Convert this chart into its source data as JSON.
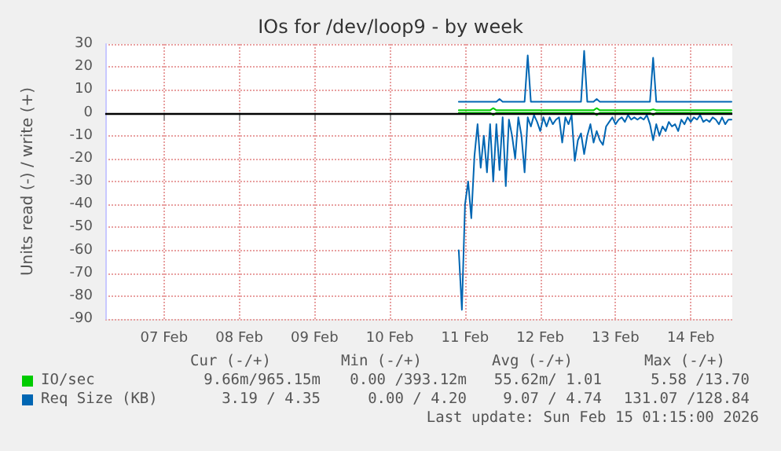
{
  "chart_data": {
    "type": "line",
    "title": "IOs for /dev/loop9 - by week",
    "ylabel": "Units read (-) / write (+)",
    "x": [
      "2026-02-11T10:00",
      "2026-02-11T11:00",
      "2026-02-11T12:00",
      "2026-02-11T13:00",
      "2026-02-11T14:00",
      "2026-02-11T15:00",
      "2026-02-11T16:00",
      "2026-02-11T17:00",
      "2026-02-11T18:00",
      "2026-02-11T19:00",
      "2026-02-11T20:00",
      "2026-02-11T21:00",
      "2026-02-11T22:00",
      "2026-02-11T23:00",
      "2026-02-12T00:00",
      "2026-02-12T01:00",
      "2026-02-12T02:00",
      "2026-02-12T03:00",
      "2026-02-12T04:00",
      "2026-02-12T05:00",
      "2026-02-12T06:00",
      "2026-02-12T07:00",
      "2026-02-12T08:00",
      "2026-02-12T09:00",
      "2026-02-12T10:00",
      "2026-02-12T11:00",
      "2026-02-12T12:00",
      "2026-02-12T13:00",
      "2026-02-12T14:00",
      "2026-02-12T15:00",
      "2026-02-12T16:00",
      "2026-02-12T17:00",
      "2026-02-12T18:00",
      "2026-02-12T19:00",
      "2026-02-12T20:00",
      "2026-02-12T21:00",
      "2026-02-12T22:00",
      "2026-02-12T23:00",
      "2026-02-13T00:00",
      "2026-02-13T01:00",
      "2026-02-13T02:00",
      "2026-02-13T03:00",
      "2026-02-13T04:00",
      "2026-02-13T05:00",
      "2026-02-13T06:00",
      "2026-02-13T07:00",
      "2026-02-13T08:00",
      "2026-02-13T09:00",
      "2026-02-13T10:00",
      "2026-02-13T11:00",
      "2026-02-13T12:00",
      "2026-02-13T13:00",
      "2026-02-13T14:00",
      "2026-02-13T15:00",
      "2026-02-13T16:00",
      "2026-02-13T17:00",
      "2026-02-13T18:00",
      "2026-02-13T19:00",
      "2026-02-13T20:00",
      "2026-02-13T21:00",
      "2026-02-13T22:00",
      "2026-02-13T23:00",
      "2026-02-14T00:00",
      "2026-02-14T01:00",
      "2026-02-14T02:00",
      "2026-02-14T03:00",
      "2026-02-14T04:00",
      "2026-02-14T05:00",
      "2026-02-14T06:00",
      "2026-02-14T07:00",
      "2026-02-14T08:00",
      "2026-02-14T09:00",
      "2026-02-14T10:00",
      "2026-02-14T11:00",
      "2026-02-14T12:00",
      "2026-02-14T13:00",
      "2026-02-14T14:00",
      "2026-02-14T15:00",
      "2026-02-14T16:00",
      "2026-02-14T17:00",
      "2026-02-14T18:00",
      "2026-02-14T19:00",
      "2026-02-14T20:00",
      "2026-02-14T21:00",
      "2026-02-14T22:00",
      "2026-02-14T23:00",
      "2026-02-15T00:00",
      "2026-02-15T01:00"
    ],
    "series": [
      {
        "name": "IO/sec",
        "color": "#00cc00",
        "values": [
          1.1,
          1.1,
          1.1,
          1.1,
          1.1,
          1.1,
          1.1,
          1.1,
          1.1,
          1.1,
          1.1,
          2,
          1.1,
          1.1,
          1.1,
          1.1,
          1.1,
          1.1,
          1.1,
          1.1,
          1.1,
          1.1,
          1.1,
          1.1,
          1.1,
          1.1,
          1.1,
          1.1,
          1.1,
          1.1,
          1.1,
          1.1,
          1.1,
          1.1,
          1.1,
          1.1,
          1.1,
          1.1,
          1.1,
          1.1,
          1.1,
          1.1,
          1.1,
          1.1,
          2,
          1.1,
          1.1,
          1.1,
          1.1,
          1.1,
          1.1,
          1.1,
          1.1,
          1.1,
          1.1,
          1.1,
          1.1,
          1.1,
          1.1,
          1.1,
          1.1,
          1.1,
          1.5,
          1.1,
          1.1,
          1.1,
          1.1,
          1.1,
          1.1,
          1.1,
          1.1,
          1.1,
          1.1,
          1.1,
          1.1,
          1.1,
          1.1,
          1.1,
          1.1,
          1.1,
          1.1,
          1.1,
          1.1,
          1.1,
          1.1,
          1.1,
          1.1,
          1.1
        ]
      },
      {
        "color": "#00cc00",
        "values": [
          0,
          0,
          0,
          0,
          0,
          0,
          0,
          0,
          0,
          0,
          0,
          -1,
          0,
          0,
          0,
          0,
          0,
          0,
          0,
          0,
          0,
          0,
          0,
          0,
          0,
          0,
          0,
          0,
          0,
          0,
          0,
          0,
          0,
          0,
          0,
          0,
          0,
          0,
          0,
          0,
          0,
          0,
          0,
          0,
          -1,
          0,
          0,
          0,
          0,
          0,
          0,
          0,
          0,
          0,
          0,
          0,
          0,
          0,
          0,
          0,
          0,
          0,
          -1,
          0,
          0,
          0,
          0,
          0,
          0,
          0,
          0,
          0,
          0,
          0,
          0,
          0,
          0,
          0,
          0,
          0,
          0,
          0,
          0,
          0,
          0,
          0,
          0,
          0
        ]
      },
      {
        "name": "Req Size (KB)",
        "color": "#0066b3",
        "values": [
          4.8,
          4.8,
          4.8,
          4.8,
          4.8,
          4.8,
          4.8,
          4.8,
          4.8,
          4.8,
          4.8,
          4.8,
          4.8,
          6,
          4.8,
          4.8,
          4.8,
          4.8,
          4.8,
          4.8,
          4.8,
          4.8,
          25,
          4.8,
          4.8,
          4.8,
          4.8,
          4.8,
          4.8,
          4.8,
          4.8,
          4.8,
          4.8,
          4.8,
          4.8,
          4.8,
          4.8,
          4.8,
          4.8,
          4.8,
          27,
          4.8,
          4.8,
          4.8,
          6,
          4.8,
          4.8,
          4.8,
          4.8,
          4.8,
          4.8,
          4.8,
          4.8,
          4.8,
          4.8,
          4.8,
          4.8,
          4.8,
          4.8,
          4.8,
          4.8,
          4.8,
          24,
          4.8,
          4.8,
          4.8,
          4.8,
          4.8,
          4.8,
          4.8,
          4.8,
          4.8,
          4.8,
          4.8,
          4.8,
          4.8,
          4.8,
          4.8,
          4.8,
          4.8,
          4.8,
          4.8,
          4.8,
          4.8,
          4.8,
          4.8,
          4.8,
          4.8
        ]
      },
      {
        "color": "#0066b3",
        "values": [
          -60,
          -86,
          -40,
          -30,
          -46,
          -19,
          -5,
          -24,
          -10,
          -26,
          -5,
          -30,
          -5,
          -25,
          -2,
          -32,
          -3,
          -10,
          -20,
          -2,
          -10,
          -26,
          -2,
          -6,
          -1,
          -4,
          -8,
          -2,
          -6,
          -2,
          -5,
          -3,
          -2,
          -13,
          -2,
          -5,
          -1,
          -21,
          -12,
          -9,
          -18,
          -10,
          -5,
          -13,
          -8,
          -12,
          -14,
          -6,
          -4,
          -2,
          -5,
          -3,
          -2,
          -4,
          -1,
          -3,
          -2,
          -3,
          -2,
          -3,
          -1,
          -5,
          -12,
          -5,
          -10,
          -6,
          -8,
          -4,
          -6,
          -5,
          -8,
          -3,
          -5,
          -2,
          -4,
          -2,
          -3,
          -1,
          -4,
          -3,
          -4,
          -2,
          -3,
          -5,
          -2,
          -5,
          -3,
          -3
        ]
      }
    ],
    "xlim": [
      "2026-02-06T17:15",
      "2026-02-15T01:15"
    ],
    "xticks": [
      {
        "value": "2026-02-07T12:00",
        "label": "07 Feb"
      },
      {
        "value": "2026-02-08T12:00",
        "label": "08 Feb"
      },
      {
        "value": "2026-02-09T12:00",
        "label": "09 Feb"
      },
      {
        "value": "2026-02-10T12:00",
        "label": "10 Feb"
      },
      {
        "value": "2026-02-11T12:00",
        "label": "11 Feb"
      },
      {
        "value": "2026-02-12T12:00",
        "label": "12 Feb"
      },
      {
        "value": "2026-02-13T12:00",
        "label": "13 Feb"
      },
      {
        "value": "2026-02-14T12:00",
        "label": "14 Feb"
      }
    ],
    "ylim": [
      -90,
      30
    ],
    "yticks": [
      -90,
      -80,
      -70,
      -60,
      -50,
      -40,
      -30,
      -20,
      -10,
      0,
      10,
      20,
      30
    ],
    "ref_lines": [
      {
        "axis": "y",
        "value": 0,
        "color": "#000000"
      }
    ],
    "grid": true,
    "legend": "bottom",
    "marker": "none",
    "line_style": "solid",
    "annotations": [
      "Cur (-/+)",
      "Min (-/+)",
      "Avg (-/+)",
      "Max (-/+)",
      "9.66m/965.15m",
      "0.00 /393.12m",
      "55.62m/ 1.01",
      "5.58 /13.70",
      "3.19 / 4.35",
      "0.00 / 4.20",
      "9.07 / 4.74",
      "131.07 /128.84",
      "Last update: Sun Feb 15 01:15:00 2026"
    ]
  }
}
